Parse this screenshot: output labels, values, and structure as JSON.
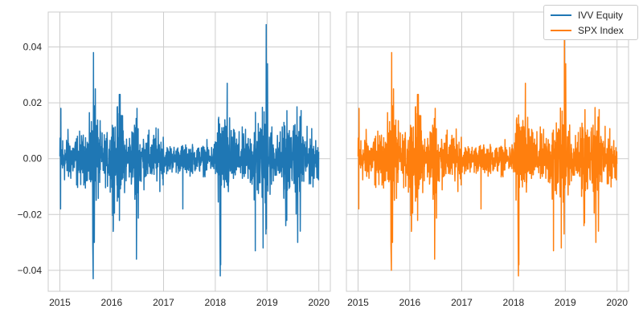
{
  "chart_data": [
    {
      "type": "line",
      "panel": "left",
      "series_name": "IVV Equity",
      "color": "#1f77b4",
      "x_ticks": [
        "2015",
        "2016",
        "2017",
        "2018",
        "2019",
        "2020"
      ],
      "y_ticks": [
        "0.04",
        "0.02",
        "0.00",
        "−0.02",
        "−0.04"
      ],
      "y_tick_values": [
        0.04,
        0.02,
        0.0,
        -0.02,
        -0.04
      ],
      "x_range": [
        "2015-01-01",
        "2019-12-31"
      ],
      "ylim": [
        -0.0475,
        0.0525
      ],
      "grid": true,
      "frequency": "daily",
      "extremes": [
        {
          "x": "2015-01-06",
          "y": -0.018
        },
        {
          "x": "2015-01-08",
          "y": 0.018
        },
        {
          "x": "2015-08-21",
          "y": -0.031
        },
        {
          "x": "2015-08-24",
          "y": -0.043
        },
        {
          "x": "2015-08-26",
          "y": 0.038
        },
        {
          "x": "2015-09-01",
          "y": -0.03
        },
        {
          "x": "2015-09-08",
          "y": 0.025
        },
        {
          "x": "2016-01-13",
          "y": -0.025
        },
        {
          "x": "2016-02-24",
          "y": 0.023
        },
        {
          "x": "2016-03-01",
          "y": 0.023
        },
        {
          "x": "2016-06-24",
          "y": -0.036
        },
        {
          "x": "2016-06-28",
          "y": 0.018
        },
        {
          "x": "2016-11-09",
          "y": 0.011
        },
        {
          "x": "2017-05-17",
          "y": -0.018
        },
        {
          "x": "2018-02-02",
          "y": -0.022
        },
        {
          "x": "2018-02-05",
          "y": -0.042
        },
        {
          "x": "2018-02-08",
          "y": -0.038
        },
        {
          "x": "2018-03-26",
          "y": 0.027
        },
        {
          "x": "2018-10-10",
          "y": -0.033
        },
        {
          "x": "2018-12-04",
          "y": -0.032
        },
        {
          "x": "2018-12-24",
          "y": -0.027
        },
        {
          "x": "2018-12-26",
          "y": 0.048
        },
        {
          "x": "2019-01-04",
          "y": 0.034
        },
        {
          "x": "2019-05-13",
          "y": -0.024
        },
        {
          "x": "2019-08-05",
          "y": -0.03
        },
        {
          "x": "2019-08-23",
          "y": -0.026
        }
      ]
    },
    {
      "type": "line",
      "panel": "right",
      "series_name": "SPX Index",
      "color": "#ff7f0e",
      "x_ticks": [
        "2015",
        "2016",
        "2017",
        "2018",
        "2019",
        "2020"
      ],
      "y_ticks": [],
      "x_range": [
        "2015-01-01",
        "2019-12-31"
      ],
      "ylim": [
        -0.0475,
        0.0525
      ],
      "sharey": true,
      "grid": true,
      "frequency": "daily",
      "extremes": [
        {
          "x": "2015-01-06",
          "y": -0.018
        },
        {
          "x": "2015-01-08",
          "y": 0.018
        },
        {
          "x": "2015-08-21",
          "y": -0.031
        },
        {
          "x": "2015-08-24",
          "y": -0.04
        },
        {
          "x": "2015-08-26",
          "y": 0.038
        },
        {
          "x": "2015-09-01",
          "y": -0.03
        },
        {
          "x": "2015-09-08",
          "y": 0.025
        },
        {
          "x": "2016-01-13",
          "y": -0.025
        },
        {
          "x": "2016-02-24",
          "y": 0.023
        },
        {
          "x": "2016-03-01",
          "y": 0.023
        },
        {
          "x": "2016-06-24",
          "y": -0.036
        },
        {
          "x": "2016-06-28",
          "y": 0.018
        },
        {
          "x": "2017-05-17",
          "y": -0.018
        },
        {
          "x": "2018-02-02",
          "y": -0.021
        },
        {
          "x": "2018-02-05",
          "y": -0.042
        },
        {
          "x": "2018-02-08",
          "y": -0.038
        },
        {
          "x": "2018-03-26",
          "y": 0.027
        },
        {
          "x": "2018-10-10",
          "y": -0.033
        },
        {
          "x": "2018-12-04",
          "y": -0.032
        },
        {
          "x": "2018-12-24",
          "y": -0.027
        },
        {
          "x": "2018-12-26",
          "y": 0.05
        },
        {
          "x": "2019-01-04",
          "y": 0.034
        },
        {
          "x": "2019-05-13",
          "y": -0.024
        },
        {
          "x": "2019-08-05",
          "y": -0.03
        },
        {
          "x": "2019-08-23",
          "y": -0.026
        }
      ]
    }
  ],
  "legend": {
    "position": "top-right",
    "entries": [
      {
        "label": "IVV Equity",
        "color": "#1f77b4"
      },
      {
        "label": "SPX Index",
        "color": "#ff7f0e"
      }
    ]
  }
}
